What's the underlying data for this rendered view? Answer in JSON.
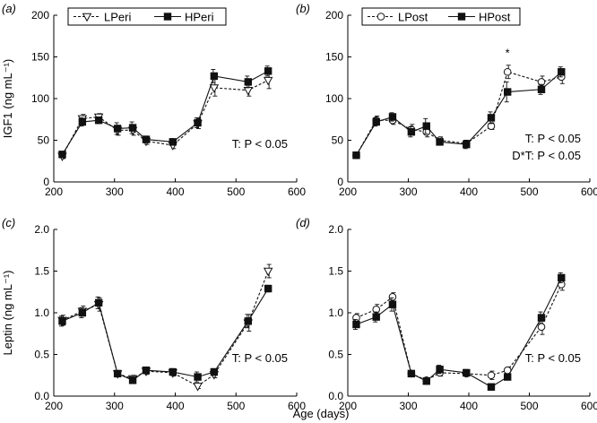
{
  "figure": {
    "shared_xlabel": "Age (days)",
    "ylabel_top": "IGF1 (ng mL⁻¹)",
    "ylabel_bottom": "Leptin (ng mL⁻¹)"
  },
  "chart_data": [
    {
      "panel": "(a)",
      "type": "line",
      "xlim": [
        200,
        600
      ],
      "ylim": [
        0,
        200
      ],
      "xticks": [
        200,
        300,
        400,
        500,
        600
      ],
      "yticks": [
        0,
        50,
        100,
        150,
        200
      ],
      "legend": "top-left",
      "stat_text": [
        "T: P < 0.05"
      ],
      "asterisks": [],
      "series": [
        {
          "name": "LPeri",
          "style": "dashed",
          "marker": "triangle-down-open",
          "x": [
            214,
            247,
            274,
            305,
            330,
            352,
            396,
            437,
            464,
            520,
            553
          ],
          "y": [
            31,
            76,
            78,
            62,
            62,
            49,
            44,
            70,
            113,
            110,
            122
          ],
          "err": [
            3,
            5,
            4,
            6,
            6,
            4,
            4,
            6,
            10,
            7,
            10
          ]
        },
        {
          "name": "HPeri",
          "style": "solid",
          "marker": "square-filled",
          "x": [
            214,
            247,
            274,
            305,
            330,
            352,
            396,
            437,
            464,
            520,
            553
          ],
          "y": [
            33,
            72,
            74,
            64,
            65,
            51,
            48,
            71,
            127,
            120,
            133
          ],
          "err": [
            3,
            5,
            4,
            7,
            7,
            4,
            4,
            6,
            8,
            7,
            6
          ]
        }
      ]
    },
    {
      "panel": "(b)",
      "type": "line",
      "xlim": [
        200,
        600
      ],
      "ylim": [
        0,
        200
      ],
      "xticks": [
        200,
        300,
        400,
        500,
        600
      ],
      "yticks": [
        0,
        50,
        100,
        150,
        200
      ],
      "legend": "top-left",
      "stat_text": [
        "T: P < 0.05",
        "D*T: P < 0.05"
      ],
      "asterisks": [
        {
          "x": 464,
          "y": 150,
          "text": "*"
        }
      ],
      "series": [
        {
          "name": "LPost",
          "style": "dashed",
          "marker": "circle-open",
          "x": [
            214,
            247,
            274,
            305,
            330,
            352,
            396,
            437,
            464,
            520,
            553
          ],
          "y": [
            32,
            74,
            74,
            63,
            60,
            50,
            46,
            67,
            132,
            120,
            126
          ],
          "err": [
            3,
            5,
            5,
            6,
            6,
            4,
            4,
            4,
            8,
            7,
            8
          ]
        },
        {
          "name": "HPost",
          "style": "solid",
          "marker": "square-filled",
          "x": [
            214,
            247,
            274,
            305,
            330,
            352,
            396,
            437,
            464,
            520,
            553
          ],
          "y": [
            32,
            72,
            78,
            60,
            67,
            48,
            45,
            77,
            108,
            111,
            132
          ],
          "err": [
            3,
            5,
            5,
            6,
            9,
            4,
            5,
            7,
            12,
            6,
            6
          ]
        }
      ]
    },
    {
      "panel": "(c)",
      "type": "line",
      "xlim": [
        200,
        600
      ],
      "ylim": [
        0,
        2.0
      ],
      "xticks": [
        200,
        300,
        400,
        500,
        600
      ],
      "yticks": [
        0,
        0.5,
        1.0,
        1.5,
        2.0
      ],
      "legend": "none",
      "stat_text": [
        "T: P < 0.05"
      ],
      "asterisks": [],
      "series": [
        {
          "name": "LPeri",
          "style": "dashed",
          "marker": "triangle-down-open",
          "x": [
            214,
            247,
            274,
            305,
            330,
            352,
            396,
            437,
            464,
            520,
            553
          ],
          "y": [
            0.91,
            1.02,
            1.1,
            0.27,
            0.21,
            0.3,
            0.28,
            0.12,
            0.26,
            0.88,
            1.5
          ],
          "err": [
            0.06,
            0.06,
            0.08,
            0.03,
            0.04,
            0.04,
            0.04,
            0.03,
            0.04,
            0.1,
            0.08
          ]
        },
        {
          "name": "HPeri",
          "style": "solid",
          "marker": "square-filled",
          "x": [
            214,
            247,
            274,
            305,
            330,
            352,
            396,
            437,
            464,
            520,
            553
          ],
          "y": [
            0.9,
            1.0,
            1.12,
            0.27,
            0.19,
            0.31,
            0.29,
            0.23,
            0.29,
            0.9,
            1.29
          ],
          "err": [
            0.06,
            0.06,
            0.07,
            0.03,
            0.04,
            0.04,
            0.04,
            0.06,
            0.04,
            0.08,
            0.04
          ]
        }
      ]
    },
    {
      "panel": "(d)",
      "type": "line",
      "xlim": [
        200,
        600
      ],
      "ylim": [
        0,
        2.0
      ],
      "xticks": [
        200,
        300,
        400,
        500,
        600
      ],
      "yticks": [
        0,
        0.5,
        1.0,
        1.5,
        2.0
      ],
      "legend": "none",
      "stat_text": [
        "T: P < 0.05"
      ],
      "asterisks": [],
      "series": [
        {
          "name": "LPost",
          "style": "dashed",
          "marker": "circle-open",
          "x": [
            214,
            247,
            274,
            305,
            330,
            352,
            396,
            437,
            464,
            520,
            553
          ],
          "y": [
            0.94,
            1.04,
            1.19,
            0.27,
            0.19,
            0.28,
            0.27,
            0.25,
            0.31,
            0.83,
            1.34
          ],
          "err": [
            0.05,
            0.06,
            0.05,
            0.03,
            0.03,
            0.04,
            0.03,
            0.05,
            0.04,
            0.09,
            0.07
          ]
        },
        {
          "name": "HPost",
          "style": "solid",
          "marker": "square-filled",
          "x": [
            214,
            247,
            274,
            305,
            330,
            352,
            396,
            437,
            464,
            520,
            553
          ],
          "y": [
            0.86,
            0.95,
            1.1,
            0.27,
            0.18,
            0.32,
            0.28,
            0.11,
            0.23,
            0.94,
            1.42
          ],
          "err": [
            0.06,
            0.06,
            0.08,
            0.03,
            0.03,
            0.05,
            0.04,
            0.02,
            0.03,
            0.07,
            0.06
          ]
        }
      ]
    }
  ]
}
